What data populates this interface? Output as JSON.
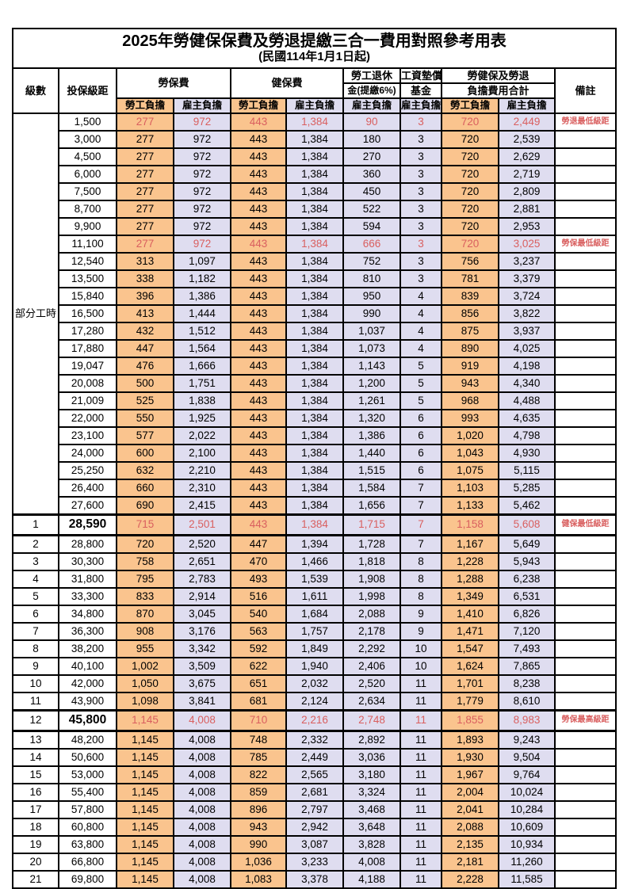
{
  "title": "2025年勞健保保費及勞退提繳三合一費用對照參考用表",
  "subtitle": "(民國114年1月1日起)",
  "colors": {
    "employee_fill": "#FAC48E",
    "employer_fill": "#DFDDF0",
    "highlight_text": "#D95F5F",
    "border": "#000000"
  },
  "header": {
    "level": "級數",
    "bracket": "投保級距",
    "labor_insurance": "勞保費",
    "health_insurance": "健保費",
    "pension_line1": "勞工退休",
    "pension_line2": "金(提繳6%)",
    "wage_fund_line1": "工資墊償",
    "wage_fund_line2": "基金",
    "total_line1": "勞健保及勞退",
    "total_line2": "負擔費用合計",
    "remarks": "備註",
    "employee": "勞工負擔",
    "employer": "雇主負擔"
  },
  "part_time_label": "部分工時",
  "rows": [
    {
      "level": "",
      "bracket": "1,500",
      "values": [
        "277",
        "972",
        "443",
        "1,384",
        "90",
        "3",
        "720",
        "2,449"
      ],
      "remark": "勞退最低級距",
      "highlight": true,
      "emphasis": false
    },
    {
      "level": "",
      "bracket": "3,000",
      "values": [
        "277",
        "972",
        "443",
        "1,384",
        "180",
        "3",
        "720",
        "2,539"
      ],
      "remark": "",
      "highlight": false,
      "emphasis": false
    },
    {
      "level": "",
      "bracket": "4,500",
      "values": [
        "277",
        "972",
        "443",
        "1,384",
        "270",
        "3",
        "720",
        "2,629"
      ],
      "remark": "",
      "highlight": false,
      "emphasis": false
    },
    {
      "level": "",
      "bracket": "6,000",
      "values": [
        "277",
        "972",
        "443",
        "1,384",
        "360",
        "3",
        "720",
        "2,719"
      ],
      "remark": "",
      "highlight": false,
      "emphasis": false
    },
    {
      "level": "",
      "bracket": "7,500",
      "values": [
        "277",
        "972",
        "443",
        "1,384",
        "450",
        "3",
        "720",
        "2,809"
      ],
      "remark": "",
      "highlight": false,
      "emphasis": false
    },
    {
      "level": "",
      "bracket": "8,700",
      "values": [
        "277",
        "972",
        "443",
        "1,384",
        "522",
        "3",
        "720",
        "2,881"
      ],
      "remark": "",
      "highlight": false,
      "emphasis": false
    },
    {
      "level": "",
      "bracket": "9,900",
      "values": [
        "277",
        "972",
        "443",
        "1,384",
        "594",
        "3",
        "720",
        "2,953"
      ],
      "remark": "",
      "highlight": false,
      "emphasis": false
    },
    {
      "level": "",
      "bracket": "11,100",
      "values": [
        "277",
        "972",
        "443",
        "1,384",
        "666",
        "3",
        "720",
        "3,025"
      ],
      "remark": "勞保最低級距",
      "highlight": true,
      "emphasis": false
    },
    {
      "level": "",
      "bracket": "12,540",
      "values": [
        "313",
        "1,097",
        "443",
        "1,384",
        "752",
        "3",
        "756",
        "3,237"
      ],
      "remark": "",
      "highlight": false,
      "emphasis": false
    },
    {
      "level": "",
      "bracket": "13,500",
      "values": [
        "338",
        "1,182",
        "443",
        "1,384",
        "810",
        "3",
        "781",
        "3,379"
      ],
      "remark": "",
      "highlight": false,
      "emphasis": false
    },
    {
      "level": "",
      "bracket": "15,840",
      "values": [
        "396",
        "1,386",
        "443",
        "1,384",
        "950",
        "4",
        "839",
        "3,724"
      ],
      "remark": "",
      "highlight": false,
      "emphasis": false
    },
    {
      "level": "",
      "bracket": "16,500",
      "values": [
        "413",
        "1,444",
        "443",
        "1,384",
        "990",
        "4",
        "856",
        "3,822"
      ],
      "remark": "",
      "highlight": false,
      "emphasis": false
    },
    {
      "level": "",
      "bracket": "17,280",
      "values": [
        "432",
        "1,512",
        "443",
        "1,384",
        "1,037",
        "4",
        "875",
        "3,937"
      ],
      "remark": "",
      "highlight": false,
      "emphasis": false
    },
    {
      "level": "",
      "bracket": "17,880",
      "values": [
        "447",
        "1,564",
        "443",
        "1,384",
        "1,073",
        "4",
        "890",
        "4,025"
      ],
      "remark": "",
      "highlight": false,
      "emphasis": false
    },
    {
      "level": "",
      "bracket": "19,047",
      "values": [
        "476",
        "1,666",
        "443",
        "1,384",
        "1,143",
        "5",
        "919",
        "4,198"
      ],
      "remark": "",
      "highlight": false,
      "emphasis": false
    },
    {
      "level": "",
      "bracket": "20,008",
      "values": [
        "500",
        "1,751",
        "443",
        "1,384",
        "1,200",
        "5",
        "943",
        "4,340"
      ],
      "remark": "",
      "highlight": false,
      "emphasis": false
    },
    {
      "level": "",
      "bracket": "21,009",
      "values": [
        "525",
        "1,838",
        "443",
        "1,384",
        "1,261",
        "5",
        "968",
        "4,488"
      ],
      "remark": "",
      "highlight": false,
      "emphasis": false
    },
    {
      "level": "",
      "bracket": "22,000",
      "values": [
        "550",
        "1,925",
        "443",
        "1,384",
        "1,320",
        "6",
        "993",
        "4,635"
      ],
      "remark": "",
      "highlight": false,
      "emphasis": false
    },
    {
      "level": "",
      "bracket": "23,100",
      "values": [
        "577",
        "2,022",
        "443",
        "1,384",
        "1,386",
        "6",
        "1,020",
        "4,798"
      ],
      "remark": "",
      "highlight": false,
      "emphasis": false
    },
    {
      "level": "",
      "bracket": "24,000",
      "values": [
        "600",
        "2,100",
        "443",
        "1,384",
        "1,440",
        "6",
        "1,043",
        "4,930"
      ],
      "remark": "",
      "highlight": false,
      "emphasis": false
    },
    {
      "level": "",
      "bracket": "25,250",
      "values": [
        "632",
        "2,210",
        "443",
        "1,384",
        "1,515",
        "6",
        "1,075",
        "5,115"
      ],
      "remark": "",
      "highlight": false,
      "emphasis": false
    },
    {
      "level": "",
      "bracket": "26,400",
      "values": [
        "660",
        "2,310",
        "443",
        "1,384",
        "1,584",
        "7",
        "1,103",
        "5,285"
      ],
      "remark": "",
      "highlight": false,
      "emphasis": false
    },
    {
      "level": "",
      "bracket": "27,600",
      "values": [
        "690",
        "2,415",
        "443",
        "1,384",
        "1,656",
        "7",
        "1,133",
        "5,462"
      ],
      "remark": "",
      "highlight": false,
      "emphasis": false
    },
    {
      "level": "1",
      "bracket": "28,590",
      "values": [
        "715",
        "2,501",
        "443",
        "1,384",
        "1,715",
        "7",
        "1,158",
        "5,608"
      ],
      "remark": "健保最低級距",
      "highlight": true,
      "emphasis": true
    },
    {
      "level": "2",
      "bracket": "28,800",
      "values": [
        "720",
        "2,520",
        "447",
        "1,394",
        "1,728",
        "7",
        "1,167",
        "5,649"
      ],
      "remark": "",
      "highlight": false,
      "emphasis": false
    },
    {
      "level": "3",
      "bracket": "30,300",
      "values": [
        "758",
        "2,651",
        "470",
        "1,466",
        "1,818",
        "8",
        "1,228",
        "5,943"
      ],
      "remark": "",
      "highlight": false,
      "emphasis": false
    },
    {
      "level": "4",
      "bracket": "31,800",
      "values": [
        "795",
        "2,783",
        "493",
        "1,539",
        "1,908",
        "8",
        "1,288",
        "6,238"
      ],
      "remark": "",
      "highlight": false,
      "emphasis": false
    },
    {
      "level": "5",
      "bracket": "33,300",
      "values": [
        "833",
        "2,914",
        "516",
        "1,611",
        "1,998",
        "8",
        "1,349",
        "6,531"
      ],
      "remark": "",
      "highlight": false,
      "emphasis": false
    },
    {
      "level": "6",
      "bracket": "34,800",
      "values": [
        "870",
        "3,045",
        "540",
        "1,684",
        "2,088",
        "9",
        "1,410",
        "6,826"
      ],
      "remark": "",
      "highlight": false,
      "emphasis": false
    },
    {
      "level": "7",
      "bracket": "36,300",
      "values": [
        "908",
        "3,176",
        "563",
        "1,757",
        "2,178",
        "9",
        "1,471",
        "7,120"
      ],
      "remark": "",
      "highlight": false,
      "emphasis": false
    },
    {
      "level": "8",
      "bracket": "38,200",
      "values": [
        "955",
        "3,342",
        "592",
        "1,849",
        "2,292",
        "10",
        "1,547",
        "7,493"
      ],
      "remark": "",
      "highlight": false,
      "emphasis": false
    },
    {
      "level": "9",
      "bracket": "40,100",
      "values": [
        "1,002",
        "3,509",
        "622",
        "1,940",
        "2,406",
        "10",
        "1,624",
        "7,865"
      ],
      "remark": "",
      "highlight": false,
      "emphasis": false
    },
    {
      "level": "10",
      "bracket": "42,000",
      "values": [
        "1,050",
        "3,675",
        "651",
        "2,032",
        "2,520",
        "11",
        "1,701",
        "8,238"
      ],
      "remark": "",
      "highlight": false,
      "emphasis": false
    },
    {
      "level": "11",
      "bracket": "43,900",
      "values": [
        "1,098",
        "3,841",
        "681",
        "2,124",
        "2,634",
        "11",
        "1,779",
        "8,610"
      ],
      "remark": "",
      "highlight": false,
      "emphasis": false
    },
    {
      "level": "12",
      "bracket": "45,800",
      "values": [
        "1,145",
        "4,008",
        "710",
        "2,216",
        "2,748",
        "11",
        "1,855",
        "8,983"
      ],
      "remark": "勞保最高級距",
      "highlight": true,
      "emphasis": true
    },
    {
      "level": "13",
      "bracket": "48,200",
      "values": [
        "1,145",
        "4,008",
        "748",
        "2,332",
        "2,892",
        "11",
        "1,893",
        "9,243"
      ],
      "remark": "",
      "highlight": false,
      "emphasis": false
    },
    {
      "level": "14",
      "bracket": "50,600",
      "values": [
        "1,145",
        "4,008",
        "785",
        "2,449",
        "3,036",
        "11",
        "1,930",
        "9,504"
      ],
      "remark": "",
      "highlight": false,
      "emphasis": false
    },
    {
      "level": "15",
      "bracket": "53,000",
      "values": [
        "1,145",
        "4,008",
        "822",
        "2,565",
        "3,180",
        "11",
        "1,967",
        "9,764"
      ],
      "remark": "",
      "highlight": false,
      "emphasis": false
    },
    {
      "level": "16",
      "bracket": "55,400",
      "values": [
        "1,145",
        "4,008",
        "859",
        "2,681",
        "3,324",
        "11",
        "2,004",
        "10,024"
      ],
      "remark": "",
      "highlight": false,
      "emphasis": false
    },
    {
      "level": "17",
      "bracket": "57,800",
      "values": [
        "1,145",
        "4,008",
        "896",
        "2,797",
        "3,468",
        "11",
        "2,041",
        "10,284"
      ],
      "remark": "",
      "highlight": false,
      "emphasis": false
    },
    {
      "level": "18",
      "bracket": "60,800",
      "values": [
        "1,145",
        "4,008",
        "943",
        "2,942",
        "3,648",
        "11",
        "2,088",
        "10,609"
      ],
      "remark": "",
      "highlight": false,
      "emphasis": false
    },
    {
      "level": "19",
      "bracket": "63,800",
      "values": [
        "1,145",
        "4,008",
        "990",
        "3,087",
        "3,828",
        "11",
        "2,135",
        "10,934"
      ],
      "remark": "",
      "highlight": false,
      "emphasis": false
    },
    {
      "level": "20",
      "bracket": "66,800",
      "values": [
        "1,145",
        "4,008",
        "1,036",
        "3,233",
        "4,008",
        "11",
        "2,181",
        "11,260"
      ],
      "remark": "",
      "highlight": false,
      "emphasis": false
    },
    {
      "level": "21",
      "bracket": "69,800",
      "values": [
        "1,145",
        "4,008",
        "1,083",
        "3,378",
        "4,188",
        "11",
        "2,228",
        "11,585"
      ],
      "remark": "",
      "highlight": false,
      "emphasis": false
    }
  ]
}
